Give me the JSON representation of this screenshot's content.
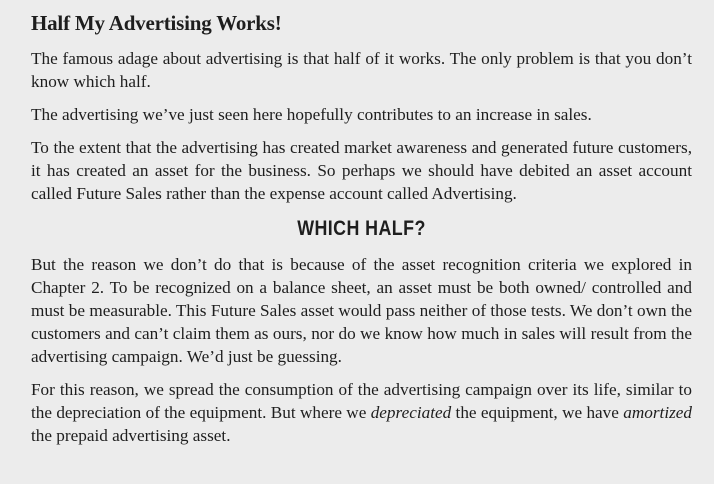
{
  "title": "Half  My Advertising Works!",
  "paragraphs_top": [
    "The famous adage about advertising is that half of it works. The only problem is that you don’t know which half.",
    "The advertising we’ve just seen here hopefully contributes to an increase in sales.",
    "To the extent that the advertising has created market awareness and generated future customers, it has created an asset for the business. So perhaps we should have debited an asset account called Future Sales rather than the expense account called Advertising."
  ],
  "section_heading": "WHICH HALF?",
  "paragraph_middle": "But the reason we don’t do that is because of the asset recognition criteria we explored in Chapter 2. To be recognized on a balance sheet, an asset must be both owned/ controlled and must be measurable. This Future Sales asset would pass neither of those tests. We don’t own the customers and can’t claim them as ours, nor do we know how much in sales will result from the advertising campaign. We’d just be guessing.",
  "final_paragraph": {
    "part1": "For this reason, we spread the consumption of the advertising campaign over its life, similar to the depreciation of the equipment. But where we ",
    "emph1": "depreciated",
    "part2": " the equipment, we have ",
    "emph2": "amortized",
    "part3": " the prepaid advertising asset."
  }
}
